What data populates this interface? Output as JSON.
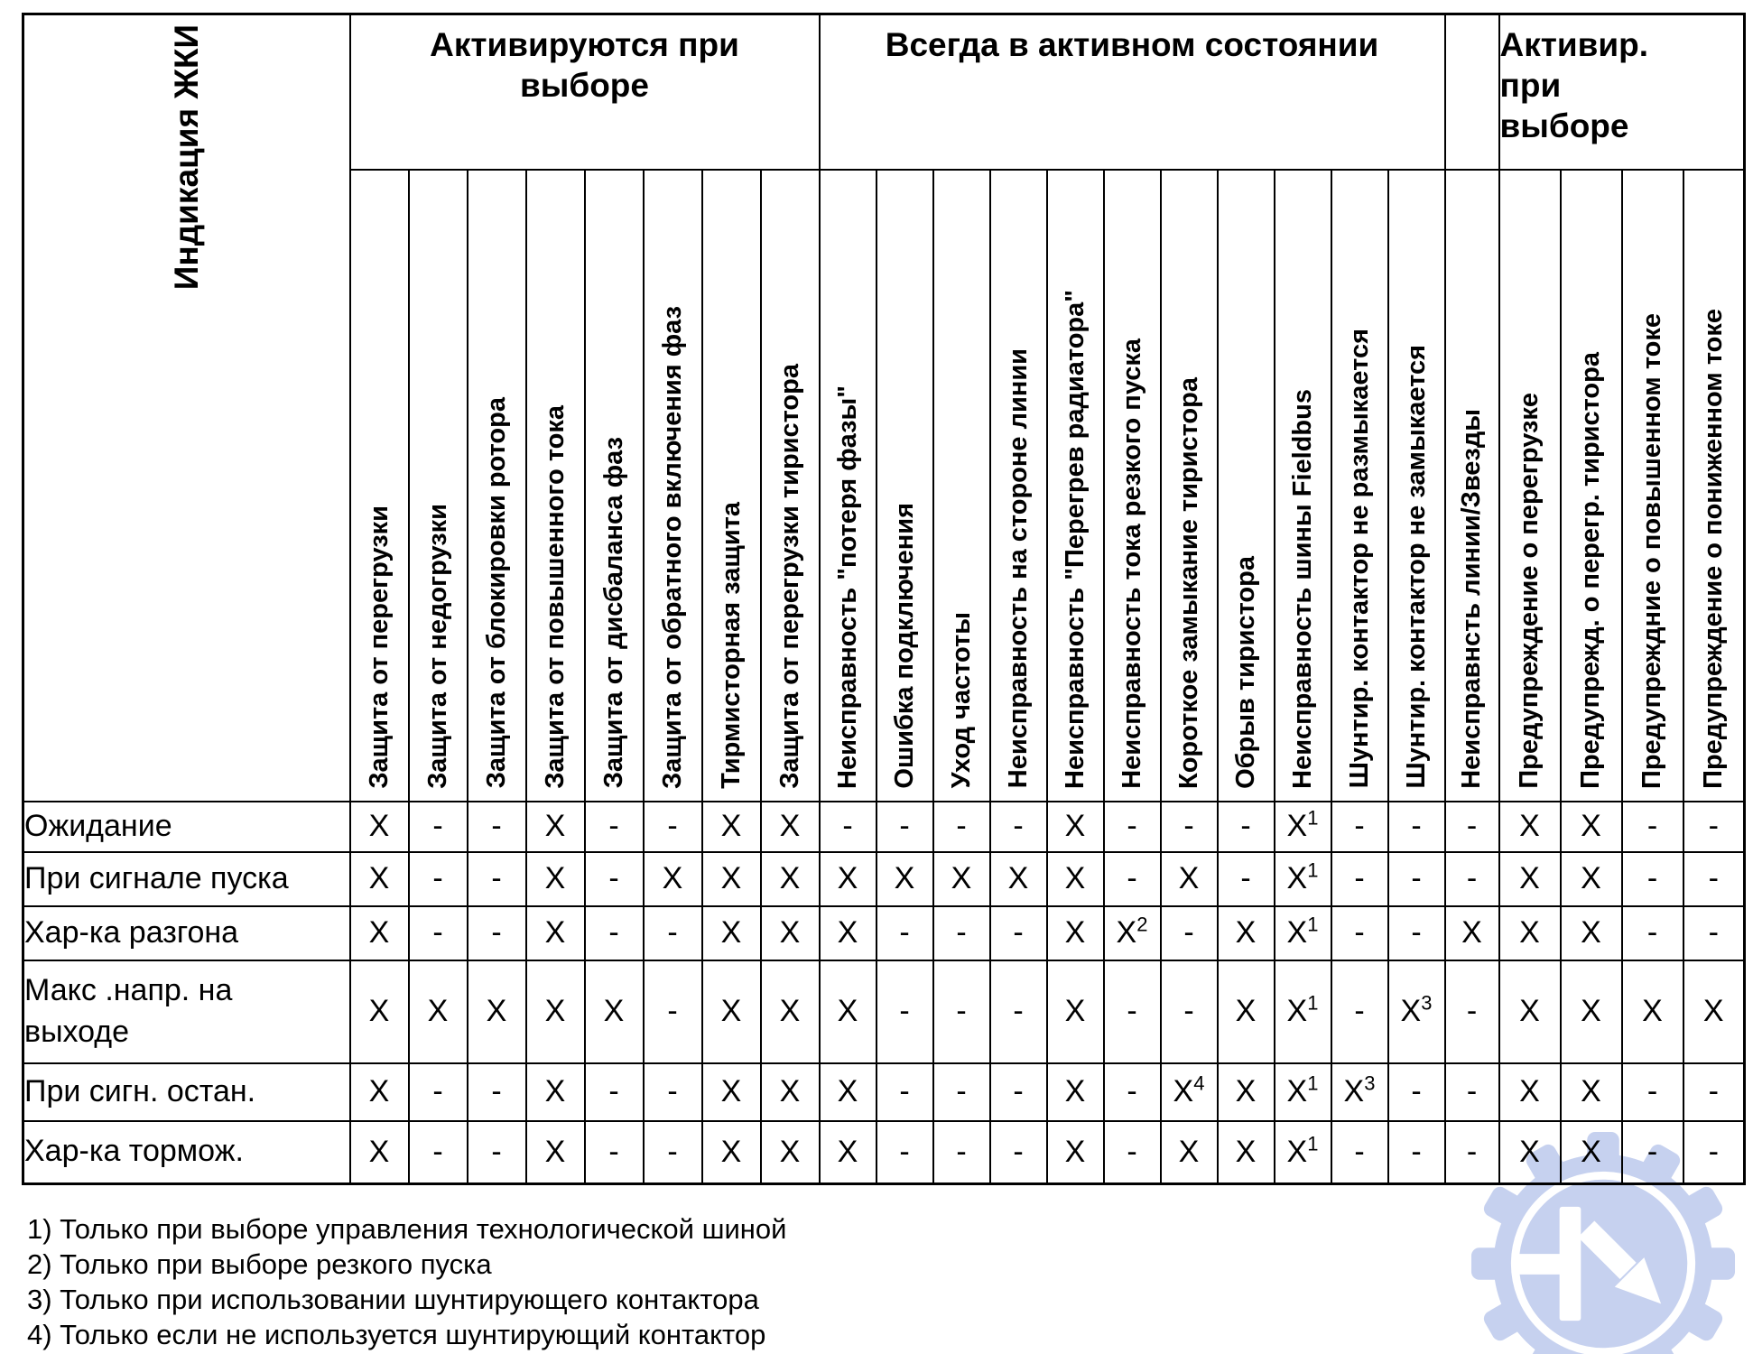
{
  "table": {
    "corner_label": "Индикация ЖКИ",
    "groups": [
      {
        "label": "Активируются при\nвыборе",
        "span": 8,
        "align": "center"
      },
      {
        "label": "Всегда в активном состоянии",
        "span": 11,
        "align": "center"
      },
      {
        "label": "",
        "span": 1,
        "align": "center"
      },
      {
        "label": "Активир.\nпри\nвыборе",
        "span": 4,
        "align": "left"
      }
    ],
    "columns": [
      "Защита от перегрузки",
      "Защита от недогрузки",
      "Защита от блокировки ротора",
      "Защита от повышенного тока",
      "Защита от дисбаланса фаз",
      "Защита от обратного включения фаз",
      "Тирмисторная защита",
      "Защита от перегрузки тиристора",
      "Неисправность \"потеря фазы\"",
      "Ошибка подключения",
      "Уход частоты",
      "Неисправность на стороне линии",
      "Неисправность \"Перегрев радиатора\"",
      "Неисправность тока резкого пуска",
      "Короткое замыкание тиристора",
      "Обрыв тиристора",
      "Неисправность шины Fieldbus",
      "Шунтир. контактор не размыкается",
      "Шунтир. контактор не замыкается",
      "Неисправнсть линии/Звезды",
      "Предупреждение о перегрузке",
      "Предупрежд. о перегр. тиристора",
      "Предупреждние о повышенном токе",
      "Предупреждение о пониженном токе"
    ],
    "rows": [
      {
        "label": "Ожидание",
        "cells": [
          "X",
          "-",
          "-",
          "X",
          "-",
          "-",
          "X",
          "X",
          "-",
          "-",
          "-",
          "-",
          "X",
          "-",
          "-",
          "-",
          "X^1",
          "-",
          "-",
          "-",
          "X",
          "X",
          "-",
          "-"
        ]
      },
      {
        "label": "При сигнале пуска",
        "cells": [
          "X",
          "-",
          "-",
          "X",
          "-",
          "X",
          "X",
          "X",
          "X",
          "X",
          "X",
          "X",
          "X",
          "-",
          "X",
          "-",
          "X^1",
          "-",
          "-",
          "-",
          "X",
          "X",
          "-",
          "-"
        ]
      },
      {
        "label": "Хар-ка разгона",
        "cells": [
          "X",
          "-",
          "-",
          "X",
          "-",
          "-",
          "X",
          "X",
          "X",
          "-",
          "-",
          "-",
          "X",
          "X^2",
          "-",
          "X",
          "X^1",
          "-",
          "-",
          "X",
          "X",
          "X",
          "-",
          "-"
        ]
      },
      {
        "label": "Макс .напр. на\nвыходе",
        "cells": [
          "X",
          "X",
          "X",
          "X",
          "X",
          "-",
          "X",
          "X",
          "X",
          "-",
          "-",
          "-",
          "X",
          "-",
          "-",
          "X",
          "X^1",
          "-",
          "X^3",
          "-",
          "X",
          "X",
          "X",
          "X"
        ]
      },
      {
        "label": "При сигн. остан.",
        "cells": [
          "X",
          "-",
          "-",
          "X",
          "-",
          "-",
          "X",
          "X",
          "X",
          "-",
          "-",
          "-",
          "X",
          "-",
          "X^4",
          "X",
          "X^1",
          "X^3",
          "-",
          "-",
          "X",
          "X",
          "-",
          "-"
        ]
      },
      {
        "label": "Хар-ка тормож.",
        "cells": [
          "X",
          "-",
          "-",
          "X",
          "-",
          "-",
          "X",
          "X",
          "X",
          "-",
          "-",
          "-",
          "X",
          "-",
          "X",
          "X",
          "X^1",
          "-",
          "-",
          "-",
          "X",
          "X",
          "-",
          "-"
        ]
      }
    ]
  },
  "footnotes": [
    "1) Только при выборе управления технологической шиной",
    "2) Только при выборе резкого пуска",
    "3) Только при использовании шунтирующего контактора",
    "4) Только если не используется шунтирующий контактор"
  ],
  "watermark": {
    "icon": "gear-k-logo",
    "color": "#c6d1ef"
  },
  "colors": {
    "border": "#000000",
    "text": "#000000",
    "background": "#ffffff"
  }
}
